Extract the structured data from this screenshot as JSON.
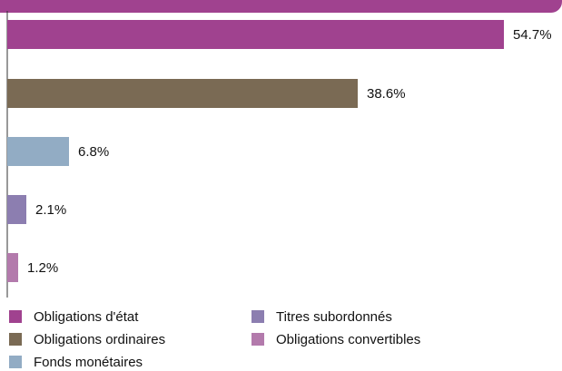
{
  "chart_data": {
    "type": "bar",
    "orientation": "horizontal",
    "categories": [
      "Obligations d'état",
      "Obligations ordinaires",
      "Fonds monétaires",
      "Titres subordonnés",
      "Obligations convertibles"
    ],
    "values": [
      54.7,
      38.6,
      6.8,
      2.1,
      1.2
    ],
    "value_labels": [
      "54.7%",
      "38.6%",
      "6.8%",
      "2.1%",
      "1.2%"
    ],
    "colors": [
      "#a0428f",
      "#7a6a54",
      "#92acc4",
      "#8c7eb0",
      "#b37aac"
    ],
    "xlim": [
      0,
      60
    ],
    "grid": false,
    "legend_position": "bottom"
  },
  "legend": [
    {
      "label": "Obligations d'état",
      "color": "#a0428f"
    },
    {
      "label": "Titres subordonnés",
      "color": "#8c7eb0"
    },
    {
      "label": "Obligations ordinaires",
      "color": "#7a6a54"
    },
    {
      "label": "Obligations convertibles",
      "color": "#b37aac"
    },
    {
      "label": "Fonds monétaires",
      "color": "#92acc4"
    }
  ]
}
